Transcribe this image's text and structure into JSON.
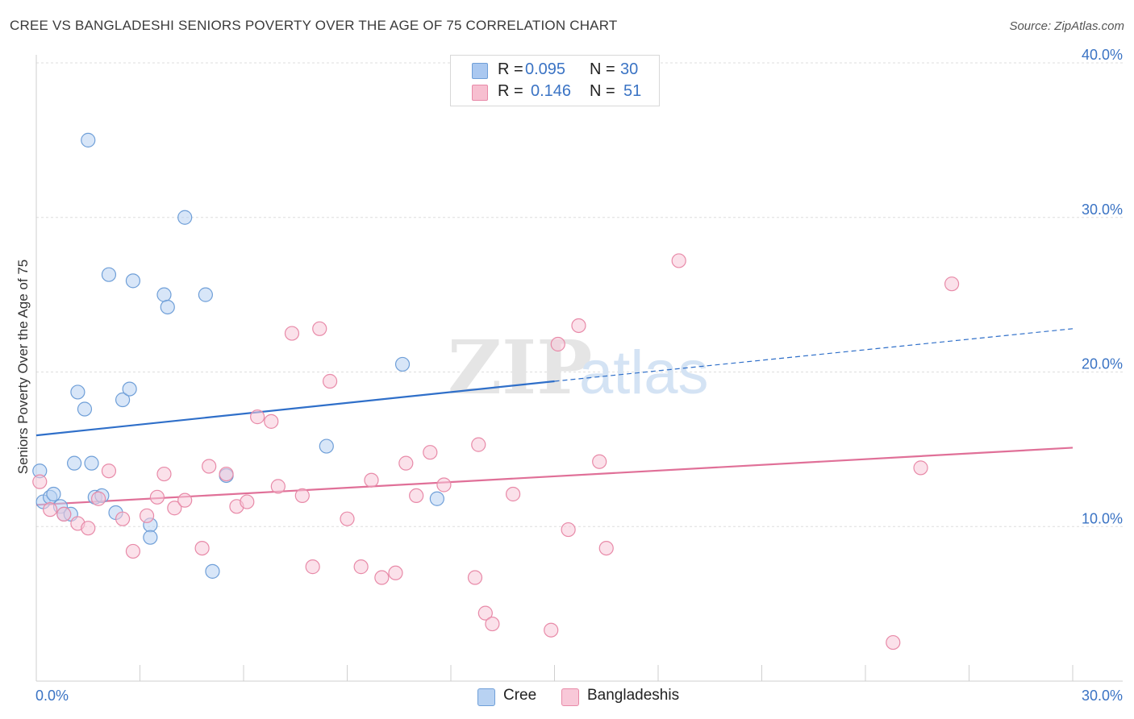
{
  "title": "CREE VS BANGLADESHI SENIORS POVERTY OVER THE AGE OF 75 CORRELATION CHART",
  "source": "Source: ZipAtlas.com",
  "watermark": {
    "zip": "ZIP",
    "atlas": "atlas"
  },
  "legend": {
    "rows": [
      {
        "r_label": "R =",
        "r_value": "0.095",
        "n_label": "N =",
        "n_value": "30",
        "color": "#aac8f0",
        "border": "#6f9fd8"
      },
      {
        "r_label": "R =",
        "r_value": "0.146",
        "n_label": "N =",
        "n_value": "51",
        "color": "#f7bfd0",
        "border": "#e88aa8"
      }
    ]
  },
  "bottom_legend": [
    {
      "label": "Cree",
      "color": "#b8d2f2",
      "border": "#6f9fd8"
    },
    {
      "label": "Bangladeshis",
      "color": "#f8c8d8",
      "border": "#e88aa8"
    }
  ],
  "chart_data": {
    "type": "scatter",
    "title": "CREE VS BANGLADESHI SENIORS POVERTY OVER THE AGE OF 75 CORRELATION CHART",
    "xlabel": "",
    "ylabel": "Seniors Poverty Over the Age of 75",
    "xlim": [
      0,
      30
    ],
    "ylim": [
      0,
      40
    ],
    "x_tick_labels": [
      "0.0%",
      "30.0%"
    ],
    "y_ticks": [
      10,
      20,
      30,
      40
    ],
    "y_tick_labels": [
      "10.0%",
      "20.0%",
      "30.0%",
      "40.0%"
    ],
    "grid": true,
    "legend_placement": "top-center",
    "series": [
      {
        "name": "Cree",
        "color": "#6f9fd8",
        "fill": "#b8d2f2",
        "line_color": "#2f6fc9",
        "trend": {
          "x0": 0,
          "y0": 15.9,
          "x1": 15,
          "y1": 19.4,
          "dashed_to_x": 30,
          "dashed_to_y": 22.8
        },
        "points": [
          [
            0.1,
            13.6
          ],
          [
            0.2,
            11.6
          ],
          [
            0.4,
            11.9
          ],
          [
            0.5,
            12.1
          ],
          [
            0.7,
            11.3
          ],
          [
            0.8,
            10.8
          ],
          [
            1.0,
            10.8
          ],
          [
            1.1,
            14.1
          ],
          [
            1.2,
            18.7
          ],
          [
            1.4,
            17.6
          ],
          [
            1.5,
            35.0
          ],
          [
            1.6,
            14.1
          ],
          [
            1.7,
            11.9
          ],
          [
            1.9,
            12.0
          ],
          [
            2.1,
            26.3
          ],
          [
            2.3,
            10.9
          ],
          [
            2.5,
            18.2
          ],
          [
            2.7,
            18.9
          ],
          [
            2.8,
            25.9
          ],
          [
            3.3,
            10.1
          ],
          [
            3.3,
            9.3
          ],
          [
            3.7,
            25.0
          ],
          [
            3.8,
            24.2
          ],
          [
            4.3,
            30.0
          ],
          [
            4.9,
            25.0
          ],
          [
            5.1,
            7.1
          ],
          [
            5.5,
            13.3
          ],
          [
            8.4,
            15.2
          ],
          [
            10.6,
            20.5
          ],
          [
            11.6,
            11.8
          ]
        ]
      },
      {
        "name": "Bangladeshis",
        "color": "#e88aa8",
        "fill": "#f8c8d8",
        "line_color": "#e07098",
        "trend": {
          "x0": 0,
          "y0": 11.4,
          "x1": 30,
          "y1": 15.1
        },
        "points": [
          [
            0.1,
            12.9
          ],
          [
            0.4,
            11.1
          ],
          [
            0.8,
            10.8
          ],
          [
            1.2,
            10.2
          ],
          [
            1.5,
            9.9
          ],
          [
            1.8,
            11.8
          ],
          [
            2.1,
            13.6
          ],
          [
            2.5,
            10.5
          ],
          [
            2.8,
            8.4
          ],
          [
            3.2,
            10.7
          ],
          [
            3.5,
            11.9
          ],
          [
            3.7,
            13.4
          ],
          [
            4.0,
            11.2
          ],
          [
            4.3,
            11.7
          ],
          [
            4.8,
            8.6
          ],
          [
            5.0,
            13.9
          ],
          [
            5.5,
            13.4
          ],
          [
            5.8,
            11.3
          ],
          [
            6.1,
            11.6
          ],
          [
            6.4,
            17.1
          ],
          [
            6.8,
            16.8
          ],
          [
            7.0,
            12.6
          ],
          [
            7.4,
            22.5
          ],
          [
            7.7,
            12.0
          ],
          [
            8.0,
            7.4
          ],
          [
            8.2,
            22.8
          ],
          [
            8.5,
            19.4
          ],
          [
            9.0,
            10.5
          ],
          [
            9.4,
            7.4
          ],
          [
            9.7,
            13.0
          ],
          [
            10.0,
            6.7
          ],
          [
            10.4,
            7.0
          ],
          [
            10.7,
            14.1
          ],
          [
            11.0,
            12.0
          ],
          [
            11.4,
            14.8
          ],
          [
            11.8,
            12.7
          ],
          [
            12.7,
            6.7
          ],
          [
            12.8,
            15.3
          ],
          [
            13.0,
            4.4
          ],
          [
            13.2,
            3.7
          ],
          [
            13.8,
            12.1
          ],
          [
            14.9,
            3.3
          ],
          [
            15.1,
            21.8
          ],
          [
            15.4,
            9.8
          ],
          [
            15.7,
            23.0
          ],
          [
            16.3,
            14.2
          ],
          [
            16.5,
            8.6
          ],
          [
            18.6,
            27.2
          ],
          [
            24.8,
            2.5
          ],
          [
            25.6,
            13.8
          ],
          [
            26.5,
            25.7
          ]
        ]
      }
    ]
  }
}
